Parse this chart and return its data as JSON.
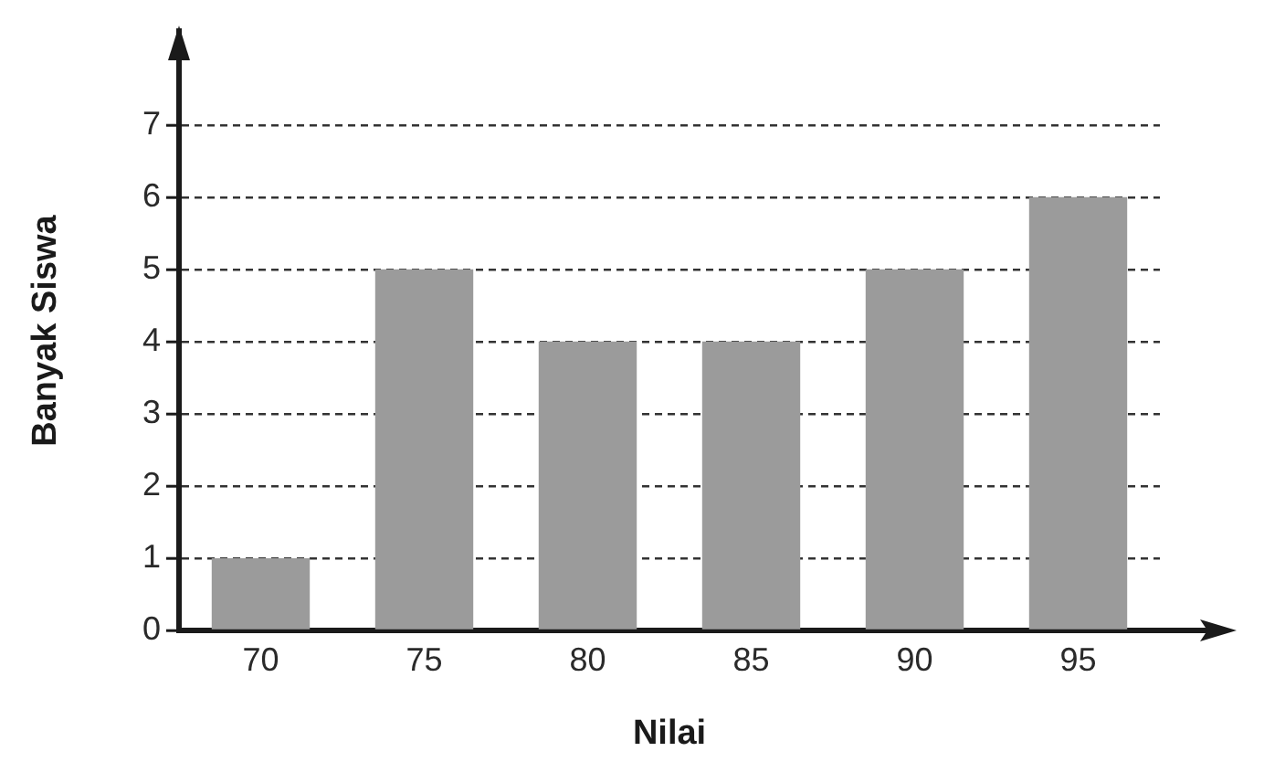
{
  "chart_data": {
    "type": "bar",
    "xlabel": "Nilai",
    "ylabel": "Banyak Siswa",
    "categories": [
      "70",
      "75",
      "80",
      "85",
      "90",
      "95"
    ],
    "values": [
      1,
      5,
      4,
      4,
      5,
      6
    ],
    "color": "#9b9b9b",
    "ylim": [
      0,
      8.3
    ],
    "yticks": [
      0,
      1,
      2,
      3,
      4,
      5,
      6,
      7
    ],
    "grid": "y"
  }
}
